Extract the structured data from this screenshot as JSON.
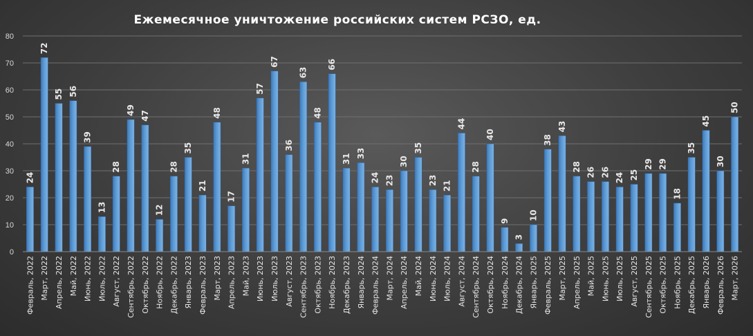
{
  "chart_data": {
    "type": "bar",
    "title": "Ежемесячное  уничтожение  российских  систем  РСЗО,  ед.",
    "xlabel": "",
    "ylabel": "",
    "ylim": [
      0,
      80
    ],
    "yticks": [
      0,
      10,
      20,
      30,
      40,
      50,
      60,
      70,
      80
    ],
    "grid": true,
    "legend": "none",
    "bar_color": "#5b9bd5",
    "categories": [
      "Февраль, 2022",
      "Март, 2022",
      "Апрель, 2022",
      "Май, 2022",
      "Июнь, 2022",
      "Июль, 2022",
      "Август, 2022",
      "Сентябрь, 2022",
      "Октябрь, 2022",
      "Ноябрь, 2022",
      "Декабрь, 2022",
      "Январь, 2023",
      "Февраль, 2023",
      "Март, 2023",
      "Апрель, 2023",
      "Май, 2023",
      "Июнь, 2023",
      "Июль, 2023",
      "Август, 2023",
      "Сентябрь, 2023",
      "Октябрь, 2023",
      "Ноябрь, 2023",
      "Декабрь, 2023",
      "Январь, 2024",
      "Февраль, 2024",
      "Март, 2024",
      "Апрель, 2024",
      "Май, 2024",
      "Июнь, 2024",
      "Июль, 2024",
      "Август, 2024",
      "Сентябрь, 2024",
      "Октябрь, 2024",
      "Ноябрь, 2024",
      "Декабрь, 2024",
      "Январь, 2025",
      "Февраль, 2025",
      "Март, 2025",
      "Апрель, 2025",
      "Май, 2025",
      "Июнь, 2025",
      "Июль, 2025",
      "Август, 2025",
      "Сентябрь, 2025",
      "Октябрь, 2025",
      "Ноябрь, 2025",
      "Декабрь, 2025",
      "Январь, 2026",
      "Февраль, 2026",
      "Март, 2026"
    ],
    "values": [
      24,
      72,
      55,
      56,
      39,
      13,
      28,
      49,
      47,
      12,
      28,
      35,
      21,
      48,
      17,
      31,
      57,
      67,
      36,
      63,
      48,
      66,
      31,
      33,
      24,
      23,
      30,
      35,
      23,
      21,
      44,
      28,
      40,
      9,
      3,
      10,
      38,
      43,
      28,
      26,
      26,
      24,
      25,
      29,
      29,
      18,
      35,
      45,
      30,
      50
    ]
  }
}
